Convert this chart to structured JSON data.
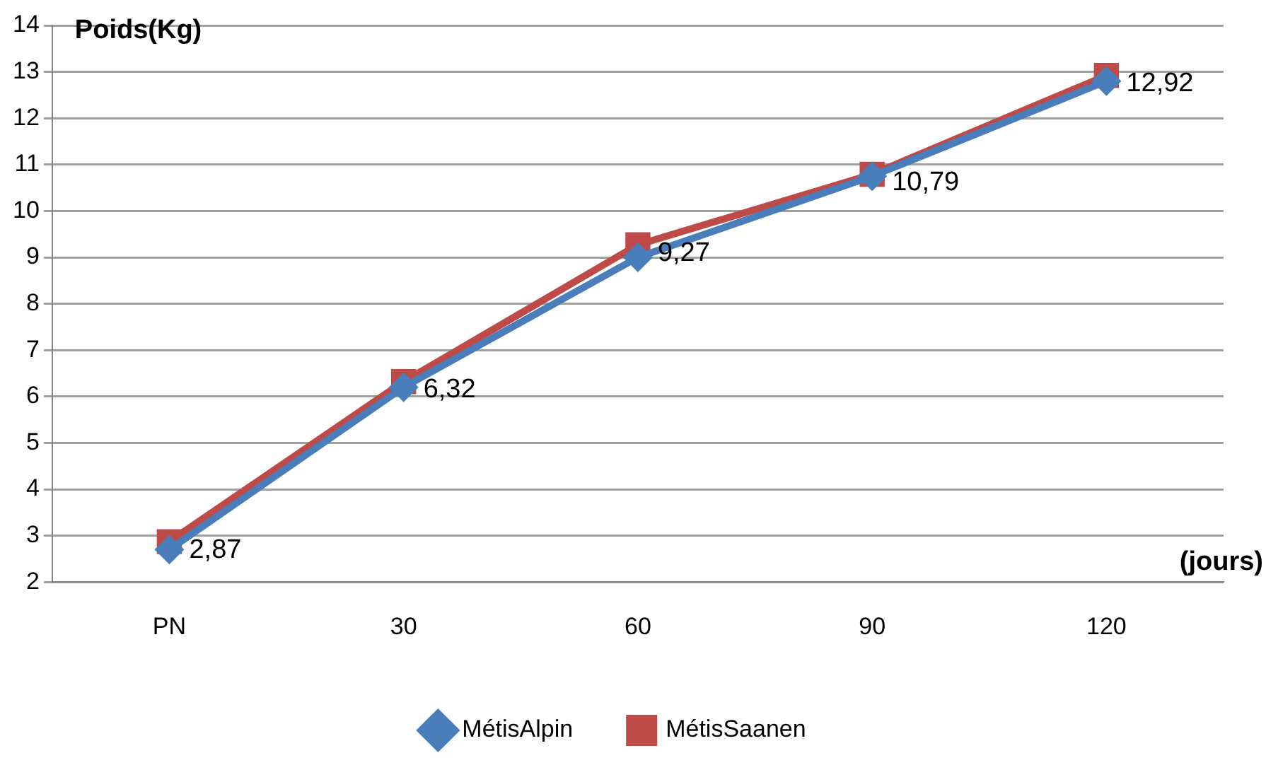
{
  "chart_data": {
    "type": "line",
    "xlabel": "(jours)",
    "ylabel": "Poids(Kg)",
    "categories": [
      "PN",
      "30",
      "60",
      "90",
      "120"
    ],
    "series": [
      {
        "name": "MétisAlpin",
        "color": "#4a7ebb",
        "marker": "diamond",
        "values": [
          2.7,
          6.2,
          9.0,
          10.75,
          12.8
        ]
      },
      {
        "name": "MétisSaanen",
        "color": "#be4b48",
        "marker": "square",
        "values": [
          2.87,
          6.32,
          9.27,
          10.79,
          12.92
        ],
        "value_labels": [
          "2,87",
          "6,32",
          "9,27",
          "10,79",
          "12,92"
        ]
      }
    ],
    "ylim": [
      2,
      14
    ],
    "yticks": [
      2,
      3,
      4,
      5,
      6,
      7,
      8,
      9,
      10,
      11,
      12,
      13,
      14
    ],
    "grid": "y",
    "legend": "bottom",
    "line_style": "solid"
  }
}
